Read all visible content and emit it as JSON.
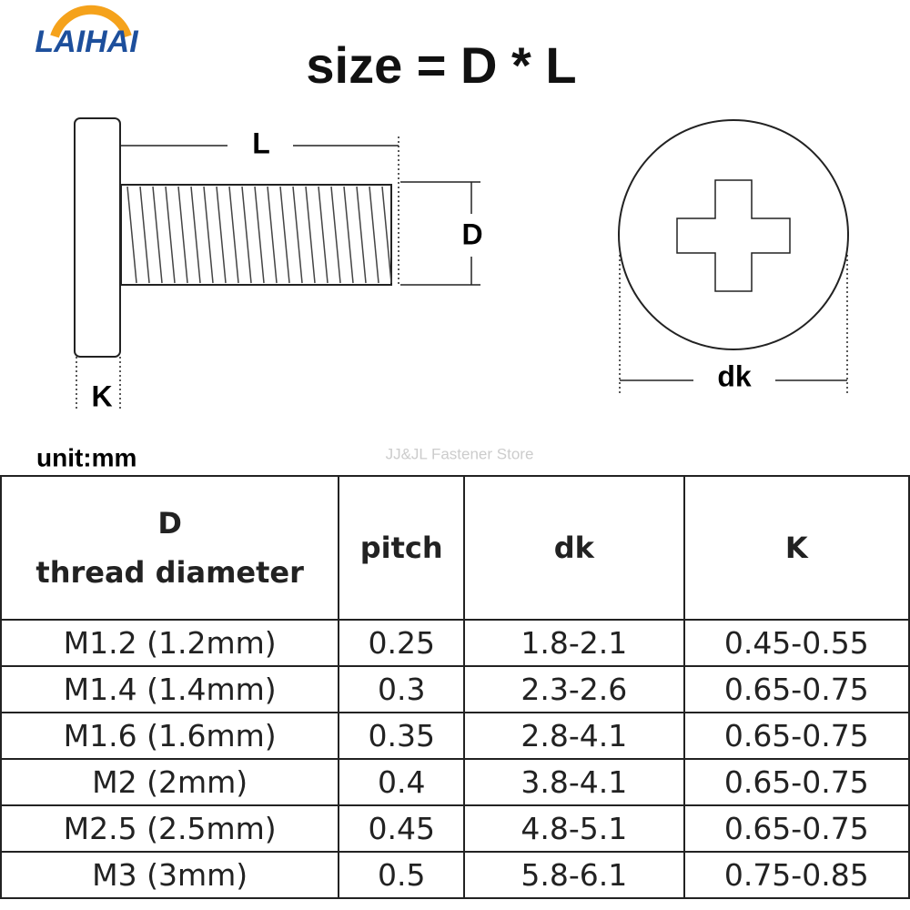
{
  "logo": "LAIHAI",
  "title": "size = D * L",
  "diagram": {
    "length_label": "L",
    "diameter_label": "D",
    "head_height_label": "K",
    "head_diameter_label": "dk"
  },
  "unit": "unit:mm",
  "watermark": "JJ&JL Fastener Store",
  "table": {
    "header": [
      "D\nthread diameter",
      "pitch",
      "dk",
      "K"
    ],
    "rows": [
      [
        "M1.2 (1.2mm)",
        "0.25",
        "1.8-2.1",
        "0.45-0.55"
      ],
      [
        "M1.4 (1.4mm)",
        "0.3",
        "2.3-2.6",
        "0.65-0.75"
      ],
      [
        "M1.6 (1.6mm)",
        "0.35",
        "2.8-4.1",
        "0.65-0.75"
      ],
      [
        "M2 (2mm)",
        "0.4",
        "3.8-4.1",
        "0.65-0.75"
      ],
      [
        "M2.5 (2.5mm)",
        "0.45",
        "4.8-5.1",
        "0.65-0.75"
      ],
      [
        "M3 (3mm)",
        "0.5",
        "5.8-6.1",
        "0.75-0.85"
      ]
    ]
  }
}
